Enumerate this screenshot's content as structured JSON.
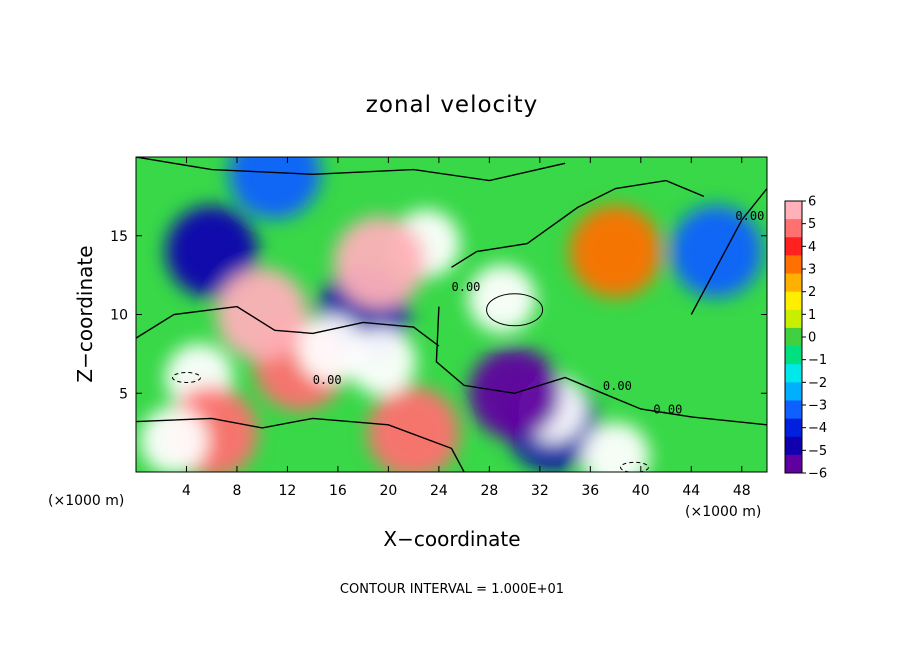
{
  "chart_data": {
    "type": "heatmap",
    "title": "zonal velocity",
    "xlabel": "X−coordinate",
    "ylabel": "Z−coordinate",
    "x_unit_label": "(×1000 m)",
    "x_unit_label_right": "(×1000 m)",
    "xlim": [
      0,
      50
    ],
    "ylim": [
      0,
      20
    ],
    "xticks": [
      4,
      8,
      12,
      16,
      20,
      24,
      28,
      32,
      36,
      40,
      44,
      48
    ],
    "xtick_labels": [
      "4",
      "8",
      "12",
      "16",
      "20",
      "24",
      "28",
      "32",
      "36",
      "40",
      "44",
      "48"
    ],
    "yticks": [
      5,
      10,
      15
    ],
    "ytick_labels": [
      "5",
      "10",
      "15"
    ],
    "colorbar": {
      "min": -6,
      "max": 6,
      "ticks": [
        6,
        5,
        4,
        3,
        2,
        1,
        0,
        -1,
        -2,
        -3,
        -4,
        -5,
        -6
      ],
      "tick_labels": [
        "6",
        "5",
        "4",
        "3",
        "2",
        "1",
        "0",
        "−1",
        "−2",
        "−3",
        "−4",
        "−5",
        "−6"
      ],
      "colors": [
        "#ffb0b8",
        "#ff7070",
        "#ff2020",
        "#ff7000",
        "#ffb000",
        "#ffee00",
        "#c8ee00",
        "#40d040",
        "#00e080",
        "#00e8e8",
        "#00b0ff",
        "#1060ff",
        "#0020e0",
        "#1000b0",
        "#6000a0"
      ]
    },
    "saturated_color": "#ffffff",
    "contour_interval_note": "CONTOUR INTERVAL = 1.000E+01",
    "contour_labels": [
      "0.00",
      "0.00",
      "0.00",
      "0.00",
      "0.00"
    ],
    "features": [
      {
        "kind": "jet",
        "x": 6,
        "z": 14,
        "value": -5
      },
      {
        "kind": "jet",
        "x": 18,
        "z": 10,
        "value": -5
      },
      {
        "kind": "jet",
        "x": 11,
        "z": 19,
        "value": -3
      },
      {
        "kind": "jet",
        "x": 46,
        "z": 14,
        "value": -3
      },
      {
        "kind": "jet",
        "x": 33,
        "z": 3,
        "value": -5
      },
      {
        "kind": "jet",
        "x": 29,
        "z": 11,
        "value": 6.8
      },
      {
        "kind": "jet",
        "x": 38,
        "z": 14,
        "value": 3
      },
      {
        "kind": "jet",
        "x": 5,
        "z": 6,
        "value": 7
      },
      {
        "kind": "jet",
        "x": 13,
        "z": 6.8,
        "value": 4.5
      },
      {
        "kind": "jet",
        "x": 6,
        "z": 2.5,
        "value": 5
      },
      {
        "kind": "jet",
        "x": 22,
        "z": 2.5,
        "value": 4.5
      },
      {
        "kind": "jet",
        "x": 3,
        "z": 2,
        "value": 6.5
      },
      {
        "kind": "jet",
        "x": 23,
        "z": 14.5,
        "value": 7
      },
      {
        "kind": "jet",
        "x": 19.3,
        "z": 13.3,
        "value": 6
      },
      {
        "kind": "jet",
        "x": 10,
        "z": 10,
        "value": 6
      },
      {
        "kind": "jet",
        "x": 15.5,
        "z": 7.8,
        "value": 6.5
      },
      {
        "kind": "jet",
        "x": 19.5,
        "z": 7,
        "value": 6.5
      },
      {
        "kind": "jet",
        "x": 33,
        "z": 4,
        "value": 7
      },
      {
        "kind": "jet",
        "x": 38,
        "z": 1,
        "value": 6.5
      },
      {
        "kind": "jet",
        "x": 30,
        "z": 5,
        "value": -6
      }
    ]
  }
}
